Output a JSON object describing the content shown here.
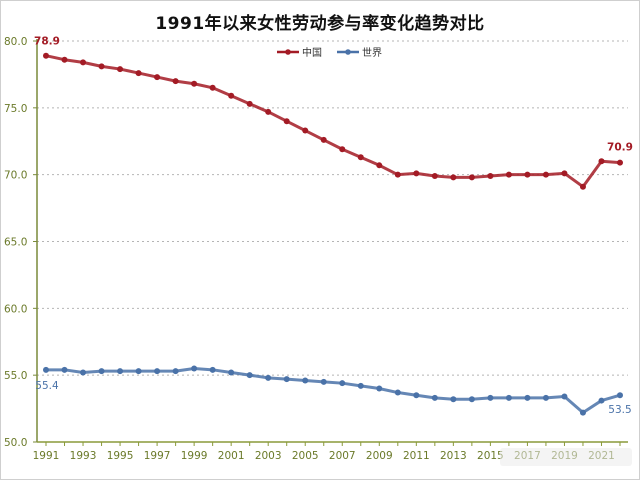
{
  "chart_data": {
    "type": "line",
    "title": "1991年以来女性劳动参与率变化趋势对比",
    "xlabel": "",
    "ylabel": "",
    "ylim": [
      50.0,
      80.0
    ],
    "yticks": [
      "50.0",
      "55.0",
      "60.0",
      "65.0",
      "70.0",
      "75.0",
      "80.0"
    ],
    "xtick_labels": [
      "1991",
      "1993",
      "1995",
      "1997",
      "1999",
      "2001",
      "2003",
      "2005",
      "2007",
      "2009",
      "2011",
      "2013",
      "2015",
      "2017",
      "2019",
      "2021"
    ],
    "grid": "horizontal dashed",
    "legend_position": "top-center",
    "x": [
      1991,
      1992,
      1993,
      1994,
      1995,
      1996,
      1997,
      1998,
      1999,
      2000,
      2001,
      2002,
      2003,
      2004,
      2005,
      2006,
      2007,
      2008,
      2009,
      2010,
      2011,
      2012,
      2013,
      2014,
      2015,
      2016,
      2017,
      2018,
      2019,
      2020,
      2021,
      2022
    ],
    "series": [
      {
        "name": "中国",
        "color": "#a31b25",
        "values": [
          78.9,
          78.6,
          78.4,
          78.1,
          77.9,
          77.6,
          77.3,
          77.0,
          76.8,
          76.5,
          75.9,
          75.3,
          74.7,
          74.0,
          73.3,
          72.6,
          71.9,
          71.3,
          70.7,
          70.0,
          70.1,
          69.9,
          69.8,
          69.8,
          69.9,
          70.0,
          70.0,
          70.0,
          70.1,
          69.1,
          71.0,
          70.9
        ],
        "annotations": [
          {
            "x": 1991,
            "label": "78.9"
          },
          {
            "x": 2022,
            "label": "70.9"
          }
        ]
      },
      {
        "name": "世界",
        "color": "#4a72a8",
        "values": [
          55.4,
          55.4,
          55.2,
          55.3,
          55.3,
          55.3,
          55.3,
          55.3,
          55.5,
          55.4,
          55.2,
          55.0,
          54.8,
          54.7,
          54.6,
          54.5,
          54.4,
          54.2,
          54.0,
          53.7,
          53.5,
          53.3,
          53.2,
          53.2,
          53.3,
          53.3,
          53.3,
          53.3,
          53.4,
          52.2,
          53.1,
          53.5
        ],
        "annotations": [
          {
            "x": 1991,
            "label": "55.4"
          },
          {
            "x": 2022,
            "label": "53.5"
          }
        ]
      }
    ]
  },
  "legend": {
    "items": [
      {
        "label": "中国",
        "color": "#a31b25"
      },
      {
        "label": "世界",
        "color": "#4a72a8"
      }
    ]
  }
}
